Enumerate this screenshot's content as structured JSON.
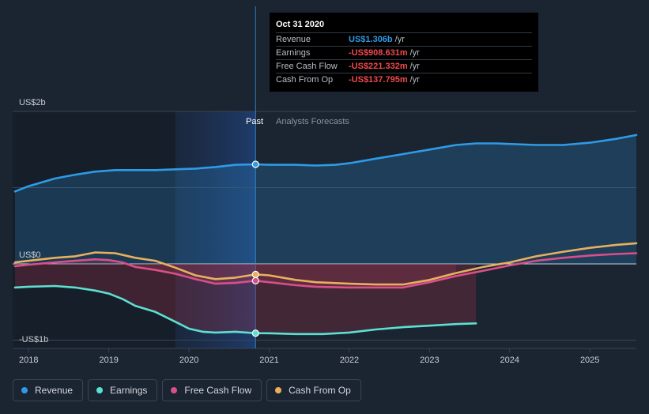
{
  "tooltip": {
    "date": "Oct 31 2020",
    "rows": [
      {
        "label": "Revenue",
        "value": "US$1.306b",
        "unit": "/yr",
        "color": "#2e9be6"
      },
      {
        "label": "Earnings",
        "value": "-US$908.631m",
        "unit": "/yr",
        "color": "#f0494d"
      },
      {
        "label": "Free Cash Flow",
        "value": "-US$221.332m",
        "unit": "/yr",
        "color": "#f0494d"
      },
      {
        "label": "Cash From Op",
        "value": "-US$137.795m",
        "unit": "/yr",
        "color": "#f0494d"
      }
    ]
  },
  "legend": [
    {
      "label": "Revenue",
      "color": "#2e9be6"
    },
    {
      "label": "Earnings",
      "color": "#5ce0d0"
    },
    {
      "label": "Free Cash Flow",
      "color": "#d94f8a"
    },
    {
      "label": "Cash From Op",
      "color": "#e8b05e"
    }
  ],
  "chart_data": {
    "type": "line",
    "title": "",
    "unit": "US$ billions",
    "y_labels": [
      "US$2b",
      "US$0",
      "-US$1b"
    ],
    "ylim": [
      -1.0,
      2.0
    ],
    "xlim": [
      2017.8,
      2025.58
    ],
    "x_ticks": [
      "2018",
      "2019",
      "2020",
      "2021",
      "2022",
      "2023",
      "2024",
      "2025"
    ],
    "region_past_label": "Past",
    "region_forecast_label": "Analysts Forecasts",
    "divider_x": 2020.83,
    "highlight_start_x": 2019.83,
    "series": [
      {
        "name": "Revenue",
        "color": "#2e9be6",
        "points": [
          [
            2017.83,
            0.95
          ],
          [
            2018.0,
            1.02
          ],
          [
            2018.33,
            1.12
          ],
          [
            2018.58,
            1.17
          ],
          [
            2018.83,
            1.21
          ],
          [
            2019.08,
            1.23
          ],
          [
            2019.33,
            1.23
          ],
          [
            2019.58,
            1.23
          ],
          [
            2019.83,
            1.24
          ],
          [
            2020.08,
            1.25
          ],
          [
            2020.33,
            1.27
          ],
          [
            2020.58,
            1.3
          ],
          [
            2020.83,
            1.306
          ],
          [
            2021.0,
            1.3
          ],
          [
            2021.33,
            1.3
          ],
          [
            2021.58,
            1.29
          ],
          [
            2021.83,
            1.3
          ],
          [
            2022.0,
            1.32
          ],
          [
            2022.33,
            1.38
          ],
          [
            2022.67,
            1.44
          ],
          [
            2023.0,
            1.5
          ],
          [
            2023.33,
            1.56
          ],
          [
            2023.58,
            1.58
          ],
          [
            2023.83,
            1.58
          ],
          [
            2024.08,
            1.57
          ],
          [
            2024.33,
            1.56
          ],
          [
            2024.67,
            1.56
          ],
          [
            2025.0,
            1.59
          ],
          [
            2025.33,
            1.64
          ],
          [
            2025.58,
            1.69
          ]
        ]
      },
      {
        "name": "Earnings",
        "color": "#5ce0d0",
        "points": [
          [
            2017.83,
            -0.31
          ],
          [
            2018.0,
            -0.3
          ],
          [
            2018.33,
            -0.29
          ],
          [
            2018.58,
            -0.31
          ],
          [
            2018.83,
            -0.35
          ],
          [
            2019.0,
            -0.39
          ],
          [
            2019.17,
            -0.46
          ],
          [
            2019.33,
            -0.55
          ],
          [
            2019.58,
            -0.63
          ],
          [
            2019.83,
            -0.76
          ],
          [
            2020.0,
            -0.85
          ],
          [
            2020.17,
            -0.89
          ],
          [
            2020.33,
            -0.9
          ],
          [
            2020.58,
            -0.89
          ],
          [
            2020.83,
            -0.909
          ],
          [
            2021.0,
            -0.91
          ],
          [
            2021.33,
            -0.92
          ],
          [
            2021.67,
            -0.92
          ],
          [
            2022.0,
            -0.9
          ],
          [
            2022.33,
            -0.86
          ],
          [
            2022.67,
            -0.83
          ],
          [
            2023.0,
            -0.81
          ],
          [
            2023.33,
            -0.79
          ],
          [
            2023.58,
            -0.78
          ]
        ]
      },
      {
        "name": "Free Cash Flow",
        "color": "#d94f8a",
        "points": [
          [
            2017.83,
            -0.03
          ],
          [
            2018.0,
            -0.01
          ],
          [
            2018.33,
            0.02
          ],
          [
            2018.58,
            0.04
          ],
          [
            2018.83,
            0.06
          ],
          [
            2019.0,
            0.05
          ],
          [
            2019.17,
            0.02
          ],
          [
            2019.33,
            -0.04
          ],
          [
            2019.58,
            -0.08
          ],
          [
            2019.83,
            -0.13
          ],
          [
            2020.08,
            -0.2
          ],
          [
            2020.33,
            -0.26
          ],
          [
            2020.58,
            -0.25
          ],
          [
            2020.83,
            -0.221
          ],
          [
            2021.0,
            -0.24
          ],
          [
            2021.33,
            -0.28
          ],
          [
            2021.58,
            -0.3
          ],
          [
            2022.0,
            -0.31
          ],
          [
            2022.33,
            -0.31
          ],
          [
            2022.67,
            -0.31
          ],
          [
            2023.0,
            -0.24
          ],
          [
            2023.33,
            -0.16
          ],
          [
            2023.67,
            -0.09
          ],
          [
            2024.0,
            -0.02
          ],
          [
            2024.33,
            0.04
          ],
          [
            2024.67,
            0.08
          ],
          [
            2025.0,
            0.11
          ],
          [
            2025.33,
            0.13
          ],
          [
            2025.58,
            0.14
          ]
        ]
      },
      {
        "name": "Cash From Op",
        "color": "#e8b05e",
        "points": [
          [
            2017.83,
            0.02
          ],
          [
            2018.0,
            0.04
          ],
          [
            2018.33,
            0.08
          ],
          [
            2018.58,
            0.1
          ],
          [
            2018.83,
            0.15
          ],
          [
            2019.08,
            0.14
          ],
          [
            2019.33,
            0.08
          ],
          [
            2019.58,
            0.04
          ],
          [
            2019.83,
            -0.05
          ],
          [
            2020.08,
            -0.15
          ],
          [
            2020.33,
            -0.2
          ],
          [
            2020.58,
            -0.18
          ],
          [
            2020.83,
            -0.138
          ],
          [
            2021.0,
            -0.15
          ],
          [
            2021.33,
            -0.21
          ],
          [
            2021.58,
            -0.24
          ],
          [
            2022.0,
            -0.26
          ],
          [
            2022.33,
            -0.27
          ],
          [
            2022.67,
            -0.27
          ],
          [
            2023.0,
            -0.21
          ],
          [
            2023.33,
            -0.12
          ],
          [
            2023.67,
            -0.04
          ],
          [
            2024.0,
            0.02
          ],
          [
            2024.33,
            0.1
          ],
          [
            2024.67,
            0.16
          ],
          [
            2025.0,
            0.21
          ],
          [
            2025.33,
            0.25
          ],
          [
            2025.58,
            0.27
          ]
        ]
      }
    ]
  }
}
